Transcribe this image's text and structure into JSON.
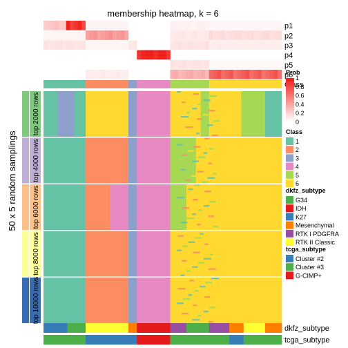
{
  "chart_data": {
    "type": "heatmap",
    "title": "membership heatmap, k = 6",
    "ylabel": "50 x 5 random samplings",
    "prob_rows": [
      "p1",
      "p2",
      "p3",
      "p4",
      "p5",
      "p6"
    ],
    "class_row_label": "Class",
    "row_groups": [
      {
        "label": "top 2000 rows",
        "color": "#7fc97f"
      },
      {
        "label": "top 4000 rows",
        "color": "#beaed4"
      },
      {
        "label": "top 6000 rows",
        "color": "#fdc086"
      },
      {
        "label": "top 8000 rows",
        "color": "#ffff99"
      },
      {
        "label": "top 10000 rows",
        "color": "#386cb0"
      }
    ],
    "bottom_annotations": [
      "dkfz_subtype",
      "tcga_subtype"
    ],
    "legend": {
      "prob": {
        "title": "Prob",
        "ticks": [
          "1",
          "0.8",
          "0.6",
          "0.4",
          "0.2",
          "0"
        ]
      },
      "class": {
        "title": "Class",
        "items": [
          {
            "label": "1",
            "color": "#66c2a5"
          },
          {
            "label": "2",
            "color": "#fc8d62"
          },
          {
            "label": "3",
            "color": "#8da0cb"
          },
          {
            "label": "4",
            "color": "#e78ac3"
          },
          {
            "label": "5",
            "color": "#a6d854"
          },
          {
            "label": "6",
            "color": "#ffd92f"
          }
        ]
      },
      "dkfz_subtype": {
        "title": "dkfz_subtype",
        "items": [
          {
            "label": "G34",
            "color": "#4daf4a"
          },
          {
            "label": "IDH",
            "color": "#e41a1c"
          },
          {
            "label": "K27",
            "color": "#377eb8"
          },
          {
            "label": "Mesenchymal",
            "color": "#ff7f00"
          },
          {
            "label": "RTK I PDGFRA",
            "color": "#984ea3"
          },
          {
            "label": "RTK II Classic",
            "color": "#ffff33"
          }
        ]
      },
      "tcga_subtype": {
        "title": "tcga_subtype",
        "items": [
          {
            "label": "Cluster #2",
            "color": "#377eb8"
          },
          {
            "label": "Cluster #3",
            "color": "#4daf4a"
          },
          {
            "label": "G-CIMP+",
            "color": "#e41a1c"
          }
        ]
      }
    },
    "class_columns": [
      {
        "cls": 1,
        "from": 0.0,
        "to": 0.177
      },
      {
        "cls": 2,
        "from": 0.177,
        "to": 0.356
      },
      {
        "cls": 3,
        "from": 0.356,
        "to": 0.392
      },
      {
        "cls": 4,
        "from": 0.392,
        "to": 0.532
      },
      {
        "cls": 5,
        "from": 0.532,
        "to": 0.695
      },
      {
        "cls": 6,
        "from": 0.695,
        "to": 1.0
      }
    ],
    "prob_segments": [
      {
        "row": "p1",
        "cls": 1,
        "from": 0.0,
        "to": 0.095,
        "value": 0.25
      },
      {
        "row": "p1",
        "cls": 1,
        "from": 0.095,
        "to": 0.177,
        "value": 0.9
      },
      {
        "row": "p1",
        "cls": 2,
        "from": 0.177,
        "to": 0.356,
        "value": 0.05
      },
      {
        "row": "p1",
        "cls": 5,
        "from": 0.532,
        "to": 0.695,
        "value": 0.06
      },
      {
        "row": "p1",
        "cls": 6,
        "from": 0.695,
        "to": 1.0,
        "value": 0.04
      },
      {
        "row": "p2",
        "cls": 1,
        "from": 0.0,
        "to": 0.177,
        "value": 0.05
      },
      {
        "row": "p2",
        "cls": 2,
        "from": 0.177,
        "to": 0.356,
        "value": 0.45
      },
      {
        "row": "p2",
        "cls": 5,
        "from": 0.532,
        "to": 0.695,
        "value": 0.1
      },
      {
        "row": "p2",
        "cls": 6,
        "from": 0.695,
        "to": 1.0,
        "value": 0.15
      },
      {
        "row": "p3",
        "cls": 1,
        "from": 0.0,
        "to": 0.177,
        "value": 0.12
      },
      {
        "row": "p3",
        "cls": 2,
        "from": 0.177,
        "to": 0.356,
        "value": 0.05
      },
      {
        "row": "p3",
        "cls": 3,
        "from": 0.356,
        "to": 0.392,
        "value": 0.1
      },
      {
        "row": "p3",
        "cls": 5,
        "from": 0.532,
        "to": 0.695,
        "value": 0.12
      },
      {
        "row": "p3",
        "cls": 6,
        "from": 0.695,
        "to": 1.0,
        "value": 0.08
      },
      {
        "row": "p4",
        "cls": 4,
        "from": 0.392,
        "to": 0.532,
        "value": 1.0
      },
      {
        "row": "p5",
        "cls": 5,
        "from": 0.532,
        "to": 0.695,
        "value": 0.12
      },
      {
        "row": "p5",
        "cls": 6,
        "from": 0.695,
        "to": 1.0,
        "value": 0.03
      },
      {
        "row": "p6",
        "cls": 2,
        "from": 0.177,
        "to": 0.356,
        "value": 0.08
      },
      {
        "row": "p6",
        "cls": 5,
        "from": 0.532,
        "to": 0.695,
        "value": 0.35
      },
      {
        "row": "p6",
        "cls": 6,
        "from": 0.695,
        "to": 1.0,
        "value": 0.7
      }
    ],
    "dkfz_segments": [
      {
        "label": "K27",
        "from": 0.0,
        "to": 0.1
      },
      {
        "label": "G34",
        "from": 0.1,
        "to": 0.177
      },
      {
        "label": "RTK II Classic",
        "from": 0.177,
        "to": 0.356
      },
      {
        "label": "Mesenchymal",
        "from": 0.356,
        "to": 0.392
      },
      {
        "label": "IDH",
        "from": 0.392,
        "to": 0.532
      },
      {
        "label": "RTK I PDGFRA",
        "from": 0.532,
        "to": 0.6
      },
      {
        "label": "G34",
        "from": 0.6,
        "to": 0.695
      },
      {
        "label": "RTK I PDGFRA",
        "from": 0.695,
        "to": 0.78
      },
      {
        "label": "Mesenchymal",
        "from": 0.78,
        "to": 0.84
      },
      {
        "label": "RTK II Classic",
        "from": 0.84,
        "to": 0.93
      },
      {
        "label": "Mesenchymal",
        "from": 0.93,
        "to": 1.0
      }
    ],
    "tcga_segments": [
      {
        "label": "Cluster #3",
        "from": 0.0,
        "to": 0.177
      },
      {
        "label": "Cluster #2",
        "from": 0.177,
        "to": 0.392
      },
      {
        "label": "G-CIMP+",
        "from": 0.392,
        "to": 0.532
      },
      {
        "label": "Cluster #3",
        "from": 0.532,
        "to": 0.78
      },
      {
        "label": "Cluster #2",
        "from": 0.78,
        "to": 0.84
      },
      {
        "label": "Cluster #3",
        "from": 0.84,
        "to": 1.0
      }
    ],
    "group_blocks": [
      {
        "group": 0,
        "segments": [
          [
            1,
            0.0,
            0.06
          ],
          [
            3,
            0.06,
            0.13
          ],
          [
            1,
            0.13,
            0.177
          ],
          [
            6,
            0.177,
            0.356
          ],
          [
            3,
            0.356,
            0.392
          ],
          [
            4,
            0.392,
            0.532
          ],
          [
            6,
            0.532,
            0.66
          ],
          [
            5,
            0.66,
            0.695
          ],
          [
            6,
            0.695,
            0.83
          ],
          [
            5,
            0.83,
            0.93
          ],
          [
            1,
            0.93,
            1.0
          ]
        ]
      },
      {
        "group": 1,
        "segments": [
          [
            1,
            0.0,
            0.177
          ],
          [
            2,
            0.177,
            0.356
          ],
          [
            3,
            0.356,
            0.392
          ],
          [
            4,
            0.392,
            0.532
          ],
          [
            5,
            0.532,
            0.64
          ],
          [
            6,
            0.64,
            1.0
          ]
        ]
      },
      {
        "group": 2,
        "segments": [
          [
            1,
            0.0,
            0.177
          ],
          [
            2,
            0.177,
            0.28
          ],
          [
            4,
            0.28,
            0.356
          ],
          [
            3,
            0.356,
            0.392
          ],
          [
            4,
            0.392,
            0.532
          ],
          [
            5,
            0.532,
            0.6
          ],
          [
            6,
            0.6,
            1.0
          ]
        ]
      },
      {
        "group": 3,
        "segments": [
          [
            1,
            0.0,
            0.177
          ],
          [
            2,
            0.177,
            0.356
          ],
          [
            3,
            0.356,
            0.392
          ],
          [
            4,
            0.392,
            0.532
          ],
          [
            6,
            0.532,
            1.0
          ]
        ]
      },
      {
        "group": 4,
        "segments": [
          [
            1,
            0.0,
            0.177
          ],
          [
            2,
            0.177,
            0.356
          ],
          [
            3,
            0.356,
            0.392
          ],
          [
            4,
            0.392,
            0.532
          ],
          [
            6,
            0.532,
            1.0
          ]
        ]
      }
    ]
  }
}
